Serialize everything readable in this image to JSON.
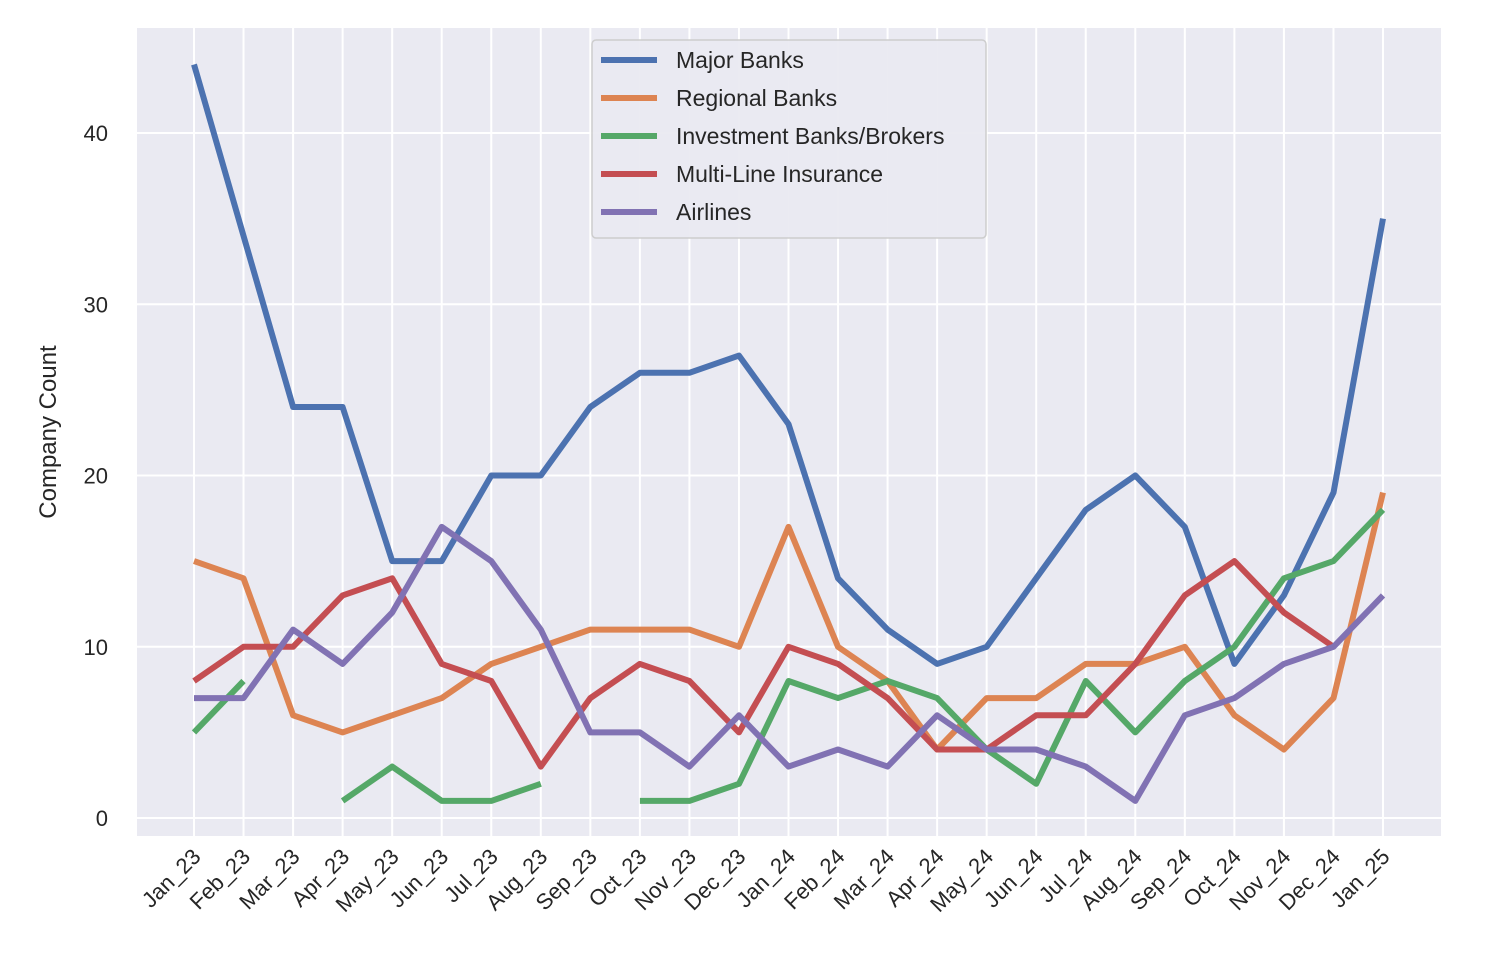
{
  "chart_data": {
    "type": "line",
    "ylabel": "Company Count",
    "xlabel": "",
    "ylim": [
      -1,
      46
    ],
    "yticks": [
      0,
      10,
      20,
      30,
      40
    ],
    "grid": true,
    "legend_position": "top-center",
    "categories": [
      "Jan_23",
      "Feb_23",
      "Mar_23",
      "Apr_23",
      "May_23",
      "Jun_23",
      "Jul_23",
      "Aug_23",
      "Sep_23",
      "Oct_23",
      "Nov_23",
      "Dec_23",
      "Jan_24",
      "Feb_24",
      "Mar_24",
      "Apr_24",
      "May_24",
      "Jun_24",
      "Jul_24",
      "Aug_24",
      "Sep_24",
      "Oct_24",
      "Nov_24",
      "Dec_24",
      "Jan_25"
    ],
    "series": [
      {
        "name": "Major Banks",
        "color": "#4c72b0",
        "values": [
          44,
          34,
          24,
          24,
          15,
          15,
          20,
          20,
          24,
          26,
          26,
          27,
          23,
          14,
          11,
          9,
          10,
          14,
          18,
          20,
          17,
          9,
          13,
          19,
          35
        ]
      },
      {
        "name": "Regional Banks",
        "color": "#dd8452",
        "values": [
          15,
          14,
          6,
          5,
          6,
          7,
          9,
          10,
          11,
          11,
          11,
          10,
          17,
          10,
          8,
          4,
          7,
          7,
          9,
          9,
          10,
          6,
          4,
          7,
          19
        ]
      },
      {
        "name": "Investment Banks/Brokers",
        "color": "#55a868",
        "values": [
          5,
          8,
          null,
          1,
          3,
          1,
          1,
          2,
          null,
          1,
          1,
          2,
          8,
          7,
          8,
          7,
          4,
          2,
          8,
          5,
          8,
          10,
          14,
          15,
          18
        ]
      },
      {
        "name": "Multi-Line Insurance",
        "color": "#c44e52",
        "values": [
          8,
          10,
          10,
          13,
          14,
          9,
          8,
          3,
          7,
          9,
          8,
          5,
          10,
          9,
          7,
          4,
          4,
          6,
          6,
          9,
          13,
          15,
          12,
          10,
          null
        ]
      },
      {
        "name": "Airlines",
        "color": "#8172b3",
        "values": [
          7,
          7,
          11,
          9,
          12,
          17,
          15,
          11,
          5,
          5,
          3,
          6,
          3,
          4,
          3,
          6,
          4,
          4,
          3,
          1,
          6,
          7,
          9,
          10,
          13
        ]
      }
    ]
  }
}
